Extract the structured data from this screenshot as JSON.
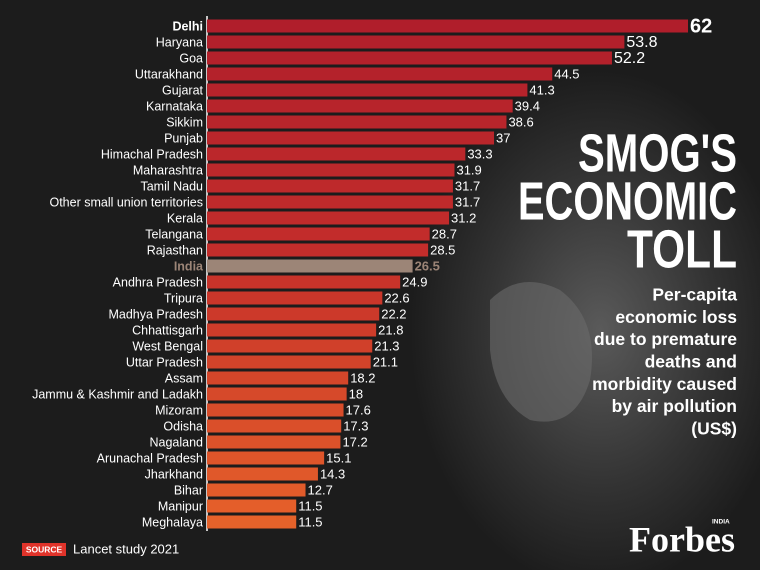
{
  "chart_data": {
    "type": "barh",
    "title": [
      "SMOG'S",
      "ECONOMIC",
      "TOLL"
    ],
    "subtitle": [
      "Per-capita",
      "economic loss",
      "due to premature",
      "deaths and",
      "morbidity caused",
      "by air pollution",
      "(US$)"
    ],
    "source_label": "SOURCE",
    "source": "Lancet study 2021",
    "brand": "Forbes",
    "brand_edition": "INDIA",
    "categories": [
      "Delhi",
      "Haryana",
      "Goa",
      "Uttarakhand",
      "Gujarat",
      "Karnataka",
      "Sikkim",
      "Punjab",
      "Himachal Pradesh",
      "Maharashtra",
      "Tamil Nadu",
      "Other small union territories",
      "Kerala",
      "Telangana",
      "Rajasthan",
      "India",
      "Andhra Pradesh",
      "Tripura",
      "Madhya Pradesh",
      "Chhattisgarh",
      "West Bengal",
      "Uttar Pradesh",
      "Assam",
      "Jammu & Kashmir and Ladakh",
      "Mizoram",
      "Odisha",
      "Nagaland",
      "Arunachal Pradesh",
      "Jharkhand",
      "Bihar",
      "Manipur",
      "Meghalaya"
    ],
    "values": [
      62,
      53.8,
      52.2,
      44.5,
      41.3,
      39.4,
      38.6,
      37,
      33.3,
      31.9,
      31.7,
      31.7,
      31.2,
      28.7,
      28.5,
      26.5,
      24.9,
      22.6,
      22.2,
      21.8,
      21.3,
      21.1,
      18.2,
      18,
      17.6,
      17.3,
      17.2,
      15.1,
      14.3,
      12.7,
      11.5,
      11.5
    ],
    "colors": [
      "#b01e2b",
      "#b2202b",
      "#b3212b",
      "#b4222b",
      "#b6232b",
      "#b7242b",
      "#b8252b",
      "#ba262b",
      "#bb272b",
      "#bc282b",
      "#be292b",
      "#bf2a2b",
      "#c02b2b",
      "#c22c2b",
      "#c32d2b",
      "#9c8577",
      "#c8332a",
      "#ca362a",
      "#cc392a",
      "#ce3c2a",
      "#d0402a",
      "#d2432a",
      "#d4462a",
      "#d6492a",
      "#d84c2a",
      "#da4f2a",
      "#dc522a",
      "#de552a",
      "#e0582a",
      "#e25b2a",
      "#e45e2a",
      "#e6622a"
    ],
    "xlim": [
      0,
      62
    ]
  }
}
